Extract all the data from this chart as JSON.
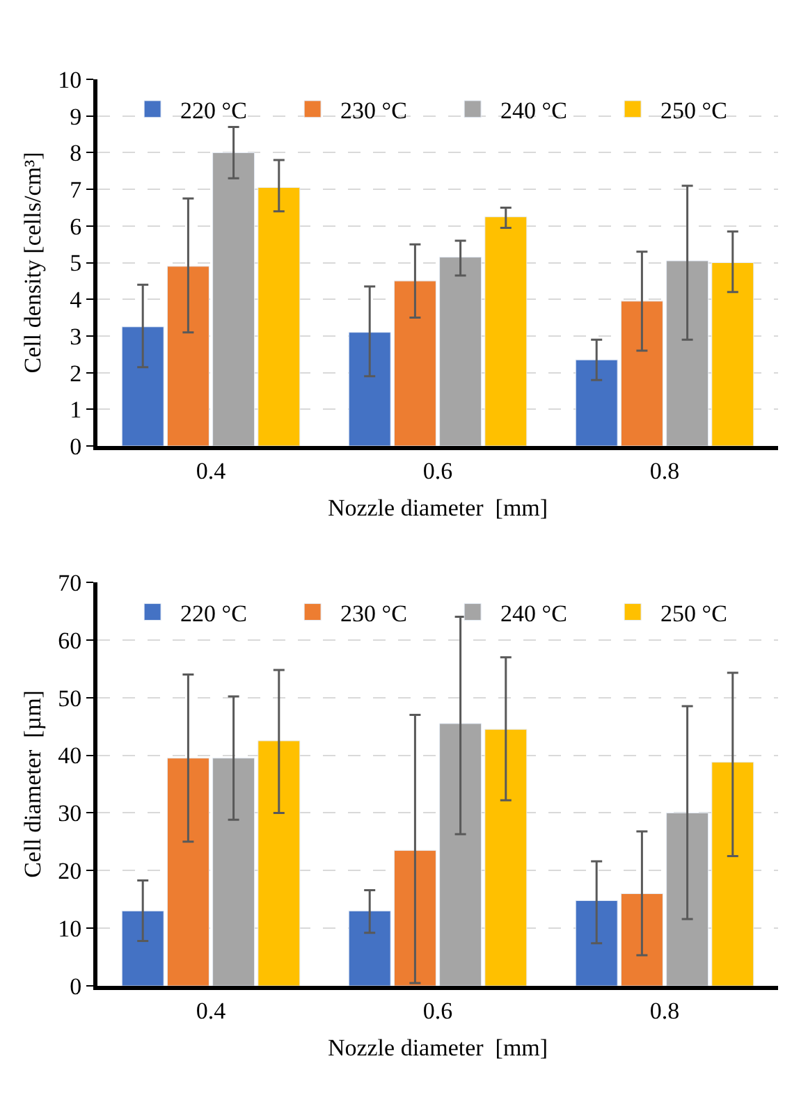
{
  "chart_data": [
    {
      "type": "bar",
      "categories": [
        "0.4",
        "0.6",
        "0.8"
      ],
      "xlabel": "Nozzle diameter  [mm]",
      "ylabel": "Cell density [cells/cm³]",
      "ylim": [
        0,
        10
      ],
      "yticks": [
        0,
        1,
        2,
        3,
        4,
        5,
        6,
        7,
        8,
        9,
        10
      ],
      "grid": "y",
      "legend": "top",
      "series": [
        {
          "name": "220 °C",
          "color": "#4472c4",
          "values": [
            3.25,
            3.1,
            2.35
          ],
          "errors": [
            [
              2.15,
              4.4
            ],
            [
              1.9,
              4.35
            ],
            [
              1.8,
              2.9
            ]
          ]
        },
        {
          "name": "230 °C",
          "color": "#ed7d31",
          "values": [
            4.9,
            4.5,
            3.95
          ],
          "errors": [
            [
              3.1,
              6.75
            ],
            [
              3.5,
              5.5
            ],
            [
              2.6,
              5.3
            ]
          ]
        },
        {
          "name": "240 °C",
          "color": "#a5a5a5",
          "values": [
            8.0,
            5.15,
            5.05
          ],
          "errors": [
            [
              7.3,
              8.7
            ],
            [
              4.65,
              5.6
            ],
            [
              2.9,
              7.1
            ]
          ]
        },
        {
          "name": "250 °C",
          "color": "#ffc000",
          "values": [
            7.05,
            6.25,
            5.0
          ],
          "errors": [
            [
              6.4,
              7.8
            ],
            [
              5.95,
              6.5
            ],
            [
              4.2,
              5.85
            ]
          ]
        }
      ]
    },
    {
      "type": "bar",
      "categories": [
        "0.4",
        "0.6",
        "0.8"
      ],
      "xlabel": "Nozzle diameter  [mm]",
      "ylabel": "Cell diameter  [µm]",
      "ylim": [
        0,
        70
      ],
      "yticks": [
        0,
        10,
        20,
        30,
        40,
        50,
        60,
        70
      ],
      "grid": "y",
      "legend": "top",
      "series": [
        {
          "name": "220 °C",
          "color": "#4472c4",
          "values": [
            13,
            13,
            14.8
          ],
          "errors": [
            [
              7.8,
              18.3
            ],
            [
              9.2,
              16.6
            ],
            [
              7.4,
              21.6
            ]
          ]
        },
        {
          "name": "230 °C",
          "color": "#ed7d31",
          "values": [
            39.5,
            23.5,
            16
          ],
          "errors": [
            [
              25,
              54
            ],
            [
              0.5,
              47
            ],
            [
              5.3,
              26.8
            ]
          ]
        },
        {
          "name": "240 °C",
          "color": "#a5a5a5",
          "values": [
            39.5,
            45.5,
            30
          ],
          "errors": [
            [
              28.8,
              50.2
            ],
            [
              26.3,
              64
            ],
            [
              11.6,
              48.5
            ]
          ]
        },
        {
          "name": "250 °C",
          "color": "#ffc000",
          "values": [
            42.5,
            44.5,
            38.8
          ],
          "errors": [
            [
              30,
              54.8
            ],
            [
              32.2,
              57
            ],
            [
              22.5,
              54.3
            ]
          ]
        }
      ]
    }
  ]
}
